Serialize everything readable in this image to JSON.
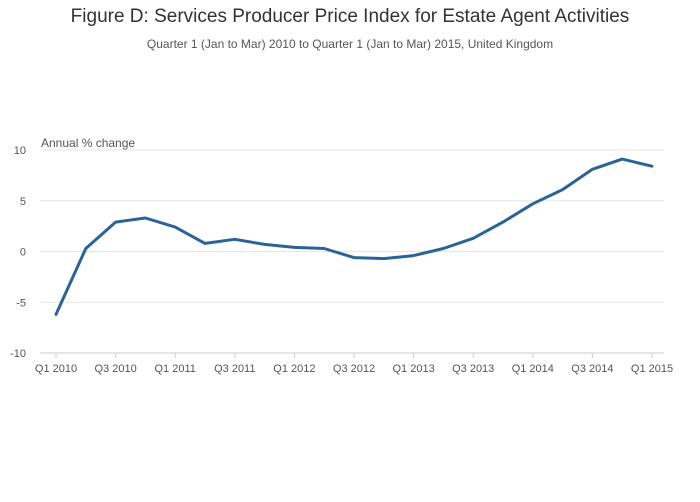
{
  "chart_data": {
    "type": "line",
    "title": "Figure D: Services Producer Price Index for Estate Agent Activities",
    "subtitle": "Quarter 1 (Jan to Mar) 2010 to Quarter 1 (Jan to Mar) 2015, United Kingdom",
    "ylabel": "Annual % change",
    "xlabel": "",
    "ylim": [
      -10,
      10
    ],
    "yticks": [
      10,
      5,
      0,
      -5,
      -10
    ],
    "xtick_labels": [
      "Q1 2010",
      "Q3 2010",
      "Q1 2011",
      "Q3 2011",
      "Q1 2012",
      "Q3 2012",
      "Q1 2013",
      "Q3 2013",
      "Q1 2014",
      "Q3 2014",
      "Q1 2015"
    ],
    "x": [
      "Q1 2010",
      "Q2 2010",
      "Q3 2010",
      "Q4 2010",
      "Q1 2011",
      "Q2 2011",
      "Q3 2011",
      "Q4 2011",
      "Q1 2012",
      "Q2 2012",
      "Q3 2012",
      "Q4 2012",
      "Q1 2013",
      "Q2 2013",
      "Q3 2013",
      "Q4 2013",
      "Q1 2014",
      "Q2 2014",
      "Q3 2014",
      "Q4 2014",
      "Q1 2015"
    ],
    "series": [
      {
        "values": [
          -6.2,
          0.3,
          2.9,
          3.3,
          2.4,
          0.8,
          1.2,
          0.7,
          0.4,
          0.3,
          -0.6,
          -0.7,
          -0.4,
          0.3,
          1.3,
          2.9,
          4.7,
          6.1,
          8.1,
          9.1,
          8.4
        ],
        "color": "#2a6496"
      }
    ],
    "grid": true,
    "legend": "none"
  }
}
